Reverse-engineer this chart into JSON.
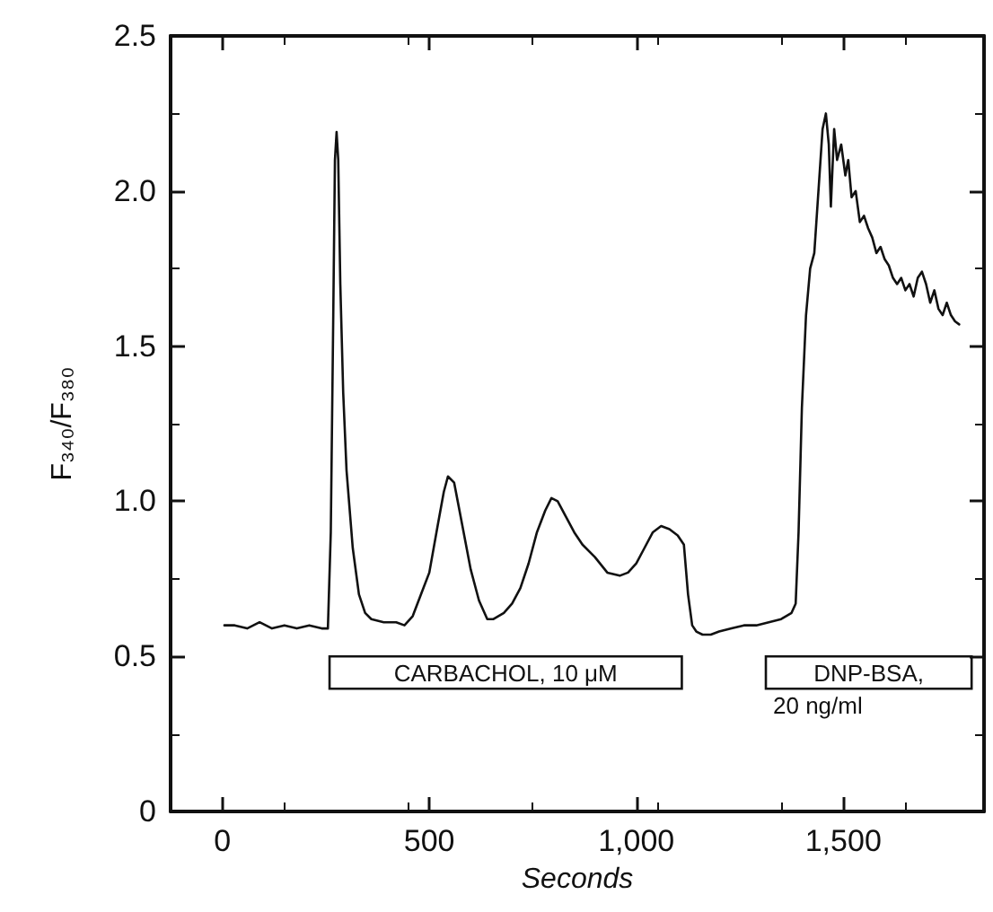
{
  "chart_data": {
    "type": "line",
    "xlabel": "Seconds",
    "ylabel": "F₃₄₀/F₃₈₀",
    "x": [
      5,
      30,
      60,
      90,
      120,
      150,
      180,
      210,
      240,
      255,
      262,
      268,
      272,
      276,
      280,
      285,
      292,
      300,
      315,
      330,
      345,
      360,
      390,
      420,
      440,
      460,
      480,
      500,
      520,
      535,
      545,
      560,
      580,
      600,
      620,
      640,
      655,
      680,
      700,
      720,
      740,
      760,
      780,
      795,
      810,
      830,
      850,
      870,
      900,
      930,
      960,
      980,
      1000,
      1020,
      1040,
      1060,
      1080,
      1100,
      1115,
      1125,
      1135,
      1145,
      1160,
      1180,
      1200,
      1230,
      1260,
      1290,
      1320,
      1350,
      1375,
      1385,
      1392,
      1400,
      1410,
      1420,
      1430,
      1440,
      1450,
      1458,
      1465,
      1470,
      1478,
      1485,
      1495,
      1505,
      1512,
      1520,
      1530,
      1540,
      1550,
      1560,
      1570,
      1580,
      1590,
      1600,
      1610,
      1620,
      1630,
      1640,
      1650,
      1660,
      1670,
      1680,
      1690,
      1700,
      1710,
      1720,
      1730,
      1740,
      1750,
      1760,
      1770,
      1780
    ],
    "series": [
      {
        "color": "#111111",
        "values": [
          0.6,
          0.6,
          0.59,
          0.61,
          0.59,
          0.6,
          0.59,
          0.6,
          0.59,
          0.59,
          0.9,
          1.6,
          2.1,
          2.19,
          2.1,
          1.7,
          1.35,
          1.1,
          0.85,
          0.7,
          0.64,
          0.62,
          0.61,
          0.61,
          0.6,
          0.63,
          0.7,
          0.77,
          0.92,
          1.03,
          1.08,
          1.06,
          0.92,
          0.78,
          0.68,
          0.62,
          0.62,
          0.64,
          0.67,
          0.72,
          0.8,
          0.9,
          0.97,
          1.01,
          1.0,
          0.95,
          0.9,
          0.86,
          0.82,
          0.77,
          0.76,
          0.77,
          0.8,
          0.85,
          0.9,
          0.92,
          0.91,
          0.89,
          0.86,
          0.7,
          0.6,
          0.58,
          0.57,
          0.57,
          0.58,
          0.59,
          0.6,
          0.6,
          0.61,
          0.62,
          0.64,
          0.67,
          0.9,
          1.3,
          1.6,
          1.75,
          1.8,
          2.0,
          2.2,
          2.25,
          2.15,
          1.95,
          2.2,
          2.1,
          2.15,
          2.05,
          2.1,
          1.98,
          2.0,
          1.9,
          1.92,
          1.88,
          1.85,
          1.8,
          1.82,
          1.78,
          1.76,
          1.72,
          1.7,
          1.72,
          1.68,
          1.7,
          1.66,
          1.72,
          1.74,
          1.7,
          1.64,
          1.68,
          1.62,
          1.6,
          1.64,
          1.6,
          1.58,
          1.57
        ]
      }
    ],
    "xlim": [
      -125,
      1840
    ],
    "ylim": [
      0,
      2.5
    ],
    "xticks": [
      0,
      500,
      {
        "value": 1000,
        "label": "1,000"
      },
      {
        "value": 1500,
        "label": "1,500"
      }
    ],
    "yticks": [
      0,
      0.5,
      {
        "value": 1,
        "label": "1.0"
      },
      1.5,
      {
        "value": 2,
        "label": "2.0"
      },
      2.5
    ],
    "bands": [
      {
        "axis": "x",
        "from": 259,
        "to": 1110,
        "label": "CARBACHOL, 10 μM"
      },
      {
        "axis": "x",
        "from": 1313,
        "to": 1810,
        "label": "DNP-BSA,\n20 ng/ml"
      }
    ],
    "grid": false,
    "marker": "none",
    "line_style": "solid"
  }
}
